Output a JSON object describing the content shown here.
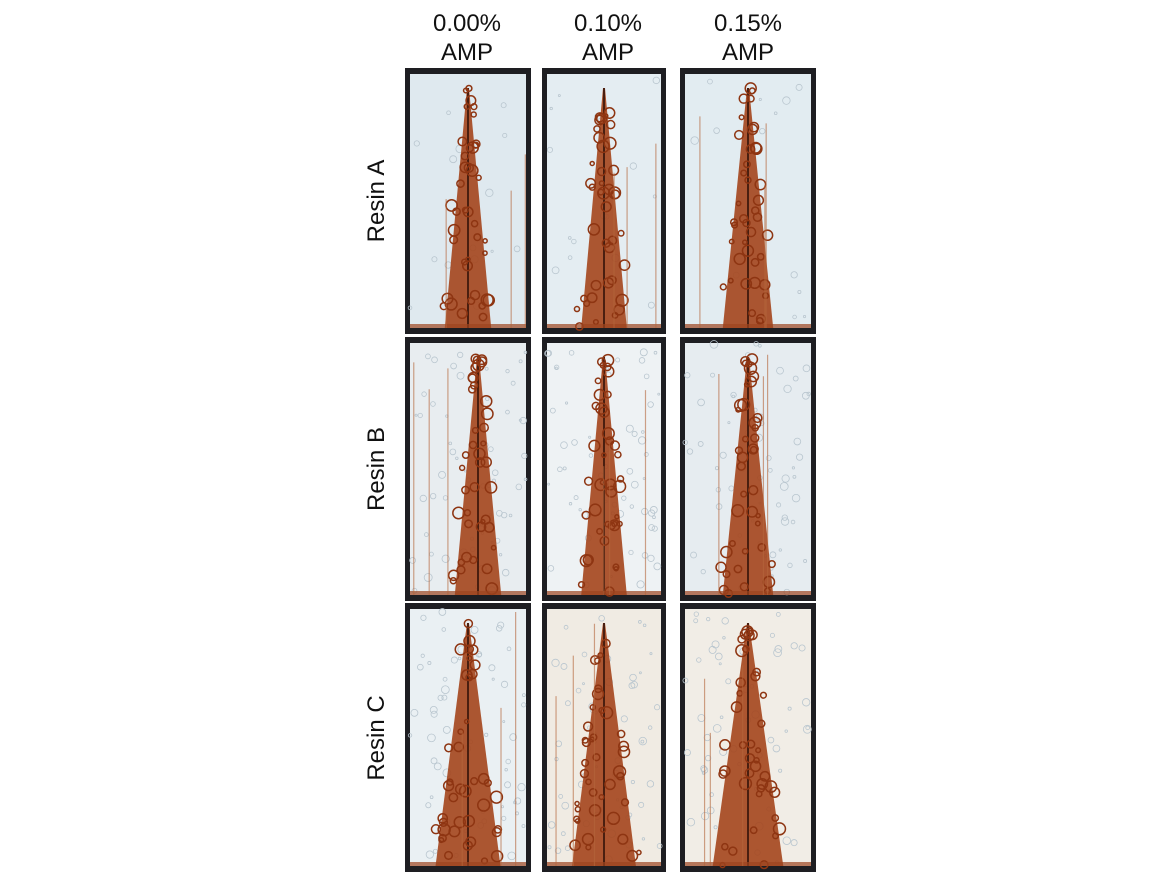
{
  "columns": [
    {
      "line1": "0.00%",
      "line2": "AMP"
    },
    {
      "line1": "0.10%",
      "line2": "AMP"
    },
    {
      "line1": "0.15%",
      "line2": "AMP"
    }
  ],
  "rows": [
    "Resin A",
    "Resin B",
    "Resin C"
  ]
}
